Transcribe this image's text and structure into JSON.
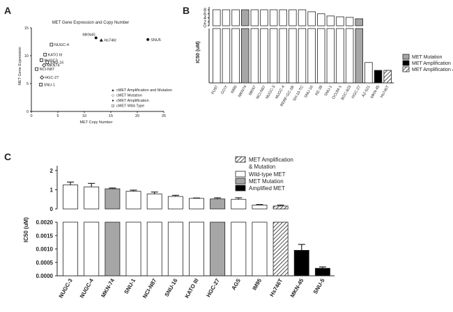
{
  "panels": [
    {
      "letter": "A",
      "type": "scatter",
      "title": "MET Gene Expression and Copy Number",
      "xlabel": "MET Copy Number",
      "ylabel": "MET Gene Expression",
      "xlim": [
        0,
        25
      ],
      "ylim": [
        0,
        15
      ],
      "xticks": [
        "0",
        "5",
        "10",
        "15",
        "20",
        "25"
      ],
      "yticks": [
        "0",
        "5",
        "10",
        "15"
      ],
      "points": [
        {
          "name": "MKN45",
          "x": 12.2,
          "y": 13.2,
          "group": "amp"
        },
        {
          "name": "Hs746t",
          "x": 13.2,
          "y": 12.8,
          "group": "ampmut"
        },
        {
          "name": "SNU5",
          "x": 22.0,
          "y": 12.9,
          "group": "amp"
        },
        {
          "name": "NUGC-4",
          "x": 3.8,
          "y": 12.0,
          "group": "wt"
        },
        {
          "name": "KATO III",
          "x": 2.6,
          "y": 10.2,
          "group": "wt"
        },
        {
          "name": "NUGC3",
          "x": 1.9,
          "y": 9.2,
          "group": "wt"
        },
        {
          "name": "SNU-16",
          "x": 3.0,
          "y": 8.8,
          "group": "wt"
        },
        {
          "name": "MKN74",
          "x": 2.4,
          "y": 8.3,
          "group": "mut"
        },
        {
          "name": "NCI-N87",
          "x": 1.0,
          "y": 7.6,
          "group": "wt"
        },
        {
          "name": "HGC-27",
          "x": 2.0,
          "y": 6.1,
          "group": "mut"
        },
        {
          "name": "SNU-1",
          "x": 1.8,
          "y": 4.8,
          "group": "wt"
        }
      ],
      "legend": [
        {
          "symbol": "▲",
          "label": "cMET Amplification and Mutation"
        },
        {
          "symbol": "◇",
          "label": "cMET Mutation"
        },
        {
          "symbol": "●",
          "label": "cMET Amplification"
        },
        {
          "symbol": "⊡",
          "label": "cMET Wild-Type"
        }
      ]
    },
    {
      "letter": "B",
      "type": "bar",
      "ylabel": "IC50 (uM)",
      "upper_ylim": [
        0,
        8
      ],
      "upper_yticks": [
        "0",
        "2",
        "4",
        "6",
        "8"
      ],
      "categories": [
        "FU97",
        "GCIY",
        "IM95",
        "MKN74",
        "MKN7",
        "NCI-N87",
        "NUGC-3",
        "NUGC-4",
        "RERF-GC-1B",
        "SH-10-TC",
        "SNU-16",
        "KE-39",
        "SNU-1",
        "OCUM-1",
        "BGC-823",
        "HGC-27",
        "AZ-521",
        "MKN-45",
        "Hs746T"
      ],
      "values": [
        8.0,
        8.0,
        8.0,
        8.0,
        8.0,
        8.0,
        8.0,
        8.0,
        8.0,
        8.0,
        7.0,
        6.0,
        4.9,
        4.5,
        4.2,
        3.5,
        0.78,
        0.0021,
        0.0021
      ],
      "groups": [
        "wt",
        "wt",
        "wt",
        "mut",
        "wt",
        "wt",
        "wt",
        "wt",
        "wt",
        "wt",
        "wt",
        "wt",
        "wt",
        "wt",
        "wt",
        "mut",
        "wt",
        "amp",
        "ampmut"
      ],
      "legend": [
        {
          "kind": "mut",
          "label": "MET Mutation"
        },
        {
          "kind": "amp",
          "label": "MET Amplification"
        },
        {
          "kind": "ampmut",
          "label": "MET Amplification & Mutation"
        }
      ]
    },
    {
      "letter": "C",
      "type": "bar",
      "ylabel": "IC50 (uM)",
      "upper_yticks": [
        "0",
        "1",
        "2"
      ],
      "lower_yticks": [
        "0.0000",
        "0.0005",
        "0.0010",
        "0.0015",
        "0.0020"
      ],
      "categories": [
        "NUGC-3",
        "NUGC-4",
        "MKN-74",
        "SNU-1",
        "NCI-N87",
        "SNU-16",
        "KATO III",
        "HGC-27",
        "AGS",
        "IM95",
        "Hs746T",
        "MKN-45",
        "SNU-5"
      ],
      "values": [
        1.25,
        1.15,
        1.05,
        0.92,
        0.78,
        0.65,
        0.55,
        0.52,
        0.5,
        0.2,
        0.15,
        0.00095,
        0.00028
      ],
      "errors": [
        0.15,
        0.18,
        0.04,
        0.06,
        0.1,
        0.06,
        0.02,
        0.06,
        0.08,
        0.03,
        0.05,
        0.00022,
        5e-05
      ],
      "groups": [
        "wt",
        "wt",
        "mut",
        "wt",
        "wt",
        "wt",
        "wt",
        "mut",
        "wt",
        "wt",
        "ampmut",
        "amp",
        "amp"
      ],
      "legend": [
        {
          "kind": "ampmut",
          "label": "MET Amplification"
        },
        {
          "kind": "none",
          "label": "& Mutation"
        },
        {
          "kind": "wt",
          "label": "Wild-type MET"
        },
        {
          "kind": "mut",
          "label": "MET Mutation"
        },
        {
          "kind": "amp",
          "label": "Amplified MET"
        }
      ]
    }
  ],
  "colors": {
    "wt": "#ffffff",
    "mut": "#a6a6a6",
    "amp": "#000000",
    "border": "#222222"
  }
}
